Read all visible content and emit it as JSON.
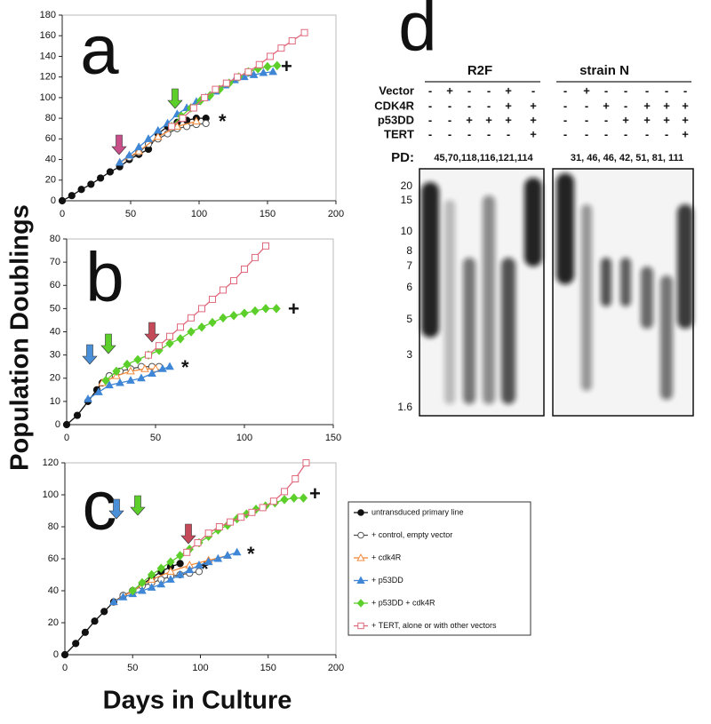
{
  "y_label": "Population Doublings",
  "x_label": "Days in Culture",
  "chart_data": [
    {
      "type": "line",
      "title": "a",
      "annotations": [
        "*",
        "+"
      ],
      "xlim": [
        0,
        200
      ],
      "xticks": [
        0,
        50,
        100,
        150,
        200
      ],
      "ylim": [
        0,
        180
      ],
      "yticks": [
        0,
        20,
        40,
        60,
        80,
        100,
        120,
        140,
        160,
        180
      ],
      "series": [
        {
          "color": "#111111",
          "marker": "circle",
          "filled": true,
          "x": [
            0,
            7,
            14,
            21,
            28,
            35,
            42,
            49,
            56,
            63,
            70,
            77,
            84,
            91,
            98,
            105
          ],
          "values": [
            0,
            5,
            11,
            16,
            22,
            28,
            33,
            40,
            45,
            50,
            65,
            72,
            76,
            78,
            80,
            80
          ]
        },
        {
          "color": "#555555",
          "marker": "circle",
          "filled": false,
          "x": [
            49,
            56,
            63,
            70,
            77,
            84,
            91,
            98,
            105
          ],
          "values": [
            42,
            47,
            55,
            60,
            65,
            70,
            72,
            74,
            75
          ]
        },
        {
          "color": "#f08a3c",
          "marker": "triangle",
          "filled": false,
          "x": [
            42,
            56,
            70,
            84,
            98
          ],
          "values": [
            37,
            48,
            62,
            72,
            77
          ]
        },
        {
          "color": "#3f86d6",
          "marker": "triangle",
          "filled": true,
          "x": [
            42,
            49,
            56,
            63,
            70,
            77,
            84,
            91,
            98,
            105,
            112,
            119,
            126,
            133,
            140,
            147,
            154
          ],
          "values": [
            37,
            44,
            52,
            60,
            68,
            75,
            84,
            90,
            96,
            100,
            106,
            112,
            117,
            120,
            122,
            124,
            125
          ]
        },
        {
          "color": "#5ccf2a",
          "marker": "diamond",
          "filled": true,
          "x": [
            80,
            87,
            94,
            101,
            108,
            115,
            122,
            129,
            136,
            143,
            150,
            157
          ],
          "values": [
            72,
            82,
            90,
            97,
            102,
            108,
            114,
            120,
            125,
            128,
            130,
            131
          ]
        },
        {
          "color": "#e0697c",
          "marker": "square",
          "filled": false,
          "x": [
            80,
            88,
            96,
            104,
            112,
            120,
            128,
            136,
            144,
            152,
            160,
            168,
            177
          ],
          "values": [
            72,
            80,
            90,
            100,
            108,
            114,
            120,
            125,
            132,
            140,
            148,
            155,
            163
          ]
        }
      ]
    },
    {
      "type": "line",
      "title": "b",
      "annotations": [
        "*",
        "+"
      ],
      "xlim": [
        0,
        150
      ],
      "xticks": [
        0,
        50,
        100,
        150
      ],
      "ylim": [
        0,
        80
      ],
      "yticks": [
        0,
        10,
        20,
        30,
        40,
        50,
        60,
        70,
        80
      ],
      "series": [
        {
          "color": "#111111",
          "marker": "circle",
          "filled": true,
          "x": [
            0,
            6,
            12,
            17,
            20,
            24
          ],
          "values": [
            0,
            4,
            10,
            15,
            18,
            21
          ]
        },
        {
          "color": "#555555",
          "marker": "circle",
          "filled": false,
          "x": [
            24,
            30,
            36,
            42,
            48,
            52
          ],
          "values": [
            21,
            23,
            24,
            25,
            25,
            25
          ]
        },
        {
          "color": "#f08a3c",
          "marker": "triangle",
          "filled": false,
          "x": [
            20,
            28,
            36,
            44,
            50
          ],
          "values": [
            18,
            21,
            23,
            24,
            24
          ]
        },
        {
          "color": "#3f86d6",
          "marker": "triangle",
          "filled": true,
          "x": [
            12,
            18,
            24,
            30,
            36,
            42,
            48,
            54,
            58
          ],
          "values": [
            11,
            14,
            17,
            18,
            19,
            20,
            22,
            24,
            25
          ]
        },
        {
          "color": "#5ccf2a",
          "marker": "diamond",
          "filled": true,
          "x": [
            22,
            28,
            34,
            40,
            46,
            52,
            58,
            64,
            70,
            76,
            82,
            88,
            94,
            100,
            106,
            112,
            118
          ],
          "values": [
            19,
            23,
            26,
            28,
            30,
            32,
            35,
            37,
            40,
            42,
            44,
            46,
            47,
            48,
            49,
            50,
            50
          ]
        },
        {
          "color": "#e0697c",
          "marker": "square",
          "filled": false,
          "x": [
            46,
            52,
            58,
            64,
            70,
            76,
            82,
            88,
            94,
            100,
            106,
            112
          ],
          "values": [
            30,
            34,
            38,
            42,
            46,
            50,
            54,
            58,
            62,
            67,
            72,
            77
          ]
        }
      ]
    },
    {
      "type": "line",
      "title": "c",
      "annotations": [
        "*",
        "*",
        "+"
      ],
      "xlim": [
        0,
        200
      ],
      "xticks": [
        0,
        50,
        100,
        150,
        200
      ],
      "ylim": [
        0,
        120
      ],
      "yticks": [
        0,
        20,
        40,
        60,
        80,
        100,
        120
      ],
      "series": [
        {
          "name": "untransduced primary line",
          "color": "#111111",
          "marker": "circle",
          "filled": true,
          "x": [
            0,
            8,
            15,
            22,
            29,
            36,
            43,
            50,
            57,
            64,
            71,
            78,
            85
          ],
          "values": [
            0,
            7,
            14,
            21,
            27,
            33,
            37,
            40,
            44,
            48,
            52,
            55,
            57
          ]
        },
        {
          "name": "+ control, empty vector",
          "color": "#555555",
          "marker": "circle",
          "filled": false,
          "x": [
            43,
            50,
            57,
            64,
            71,
            78,
            85,
            92,
            99
          ],
          "values": [
            37,
            40,
            43,
            45,
            47,
            49,
            50,
            51,
            52
          ]
        },
        {
          "name": "+ cdk4R",
          "color": "#f08a3c",
          "marker": "triangle",
          "filled": false,
          "x": [
            36,
            50,
            64,
            78,
            92,
            106,
            120
          ],
          "values": [
            33,
            40,
            47,
            52,
            56,
            59,
            62
          ]
        },
        {
          "name": "+ p53DD",
          "color": "#3f86d6",
          "marker": "triangle",
          "filled": true,
          "x": [
            36,
            43,
            50,
            57,
            64,
            71,
            78,
            85,
            92,
            99,
            106,
            113,
            120,
            127
          ],
          "values": [
            33,
            36,
            38,
            40,
            42,
            44,
            47,
            50,
            53,
            56,
            58,
            60,
            62,
            64
          ]
        },
        {
          "name": "+ p53DD + cdk4R",
          "color": "#5ccf2a",
          "marker": "diamond",
          "filled": true,
          "x": [
            50,
            57,
            64,
            71,
            78,
            85,
            92,
            99,
            106,
            113,
            120,
            127,
            134,
            141,
            148,
            155,
            162,
            169,
            176
          ],
          "values": [
            40,
            45,
            50,
            54,
            58,
            62,
            66,
            70,
            74,
            78,
            81,
            85,
            88,
            91,
            93,
            95,
            97,
            98,
            98
          ]
        },
        {
          "name": "+ TERT, alone or with other vectors",
          "color": "#e0697c",
          "marker": "square",
          "filled": false,
          "x": [
            90,
            98,
            106,
            114,
            122,
            130,
            138,
            146,
            154,
            162,
            170,
            178
          ],
          "values": [
            64,
            70,
            76,
            80,
            83,
            86,
            89,
            92,
            96,
            102,
            110,
            120
          ]
        }
      ]
    }
  ],
  "blot": {
    "title": "d",
    "row_labels": [
      "Vector",
      "CDK4R",
      "p53DD",
      "TERT"
    ],
    "pd_label": "PD:",
    "size_markers": [
      "20",
      "15",
      "10",
      "8",
      "7",
      "6",
      "5",
      "3",
      "1.6"
    ],
    "groups": [
      {
        "name": "R2F",
        "pd": "45,70,118,116,121,114",
        "rows": [
          [
            "-",
            "+",
            "-",
            "-",
            "+",
            "-"
          ],
          [
            "-",
            "-",
            "-",
            "-",
            "+",
            "+"
          ],
          [
            "-",
            "-",
            "+",
            "+",
            "+",
            "+"
          ],
          [
            "-",
            "-",
            "-",
            "-",
            "-",
            "+"
          ]
        ]
      },
      {
        "name": "strain N",
        "pd": "31, 46, 46, 42, 51, 81, 111",
        "rows": [
          [
            "-",
            "+",
            "-",
            "-",
            "-",
            "-",
            "-"
          ],
          [
            "-",
            "-",
            "+",
            "-",
            "+",
            "+",
            "+"
          ],
          [
            "-",
            "-",
            "-",
            "+",
            "+",
            "+",
            "+"
          ],
          [
            "-",
            "-",
            "-",
            "-",
            "-",
            "-",
            "+"
          ]
        ]
      }
    ]
  }
}
